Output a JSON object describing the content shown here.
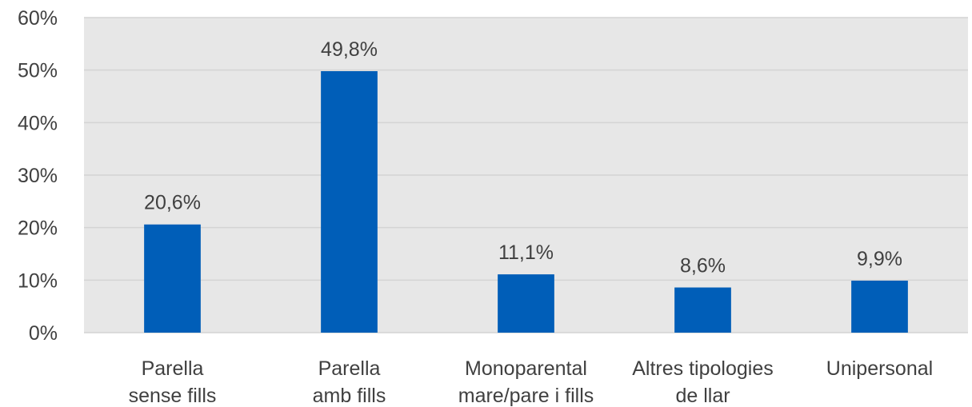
{
  "chart_data": {
    "type": "bar",
    "categories": [
      [
        "Parella",
        "sense fills"
      ],
      [
        "Parella",
        "amb fills"
      ],
      [
        "Monoparental",
        "mare/pare i fills"
      ],
      [
        "Altres tipologies",
        "de llar"
      ],
      [
        "Unipersonal"
      ]
    ],
    "values": [
      20.6,
      49.8,
      11.1,
      8.6,
      9.9
    ],
    "data_labels": [
      "20,6%",
      "49,8%",
      "11,1%",
      "8,6%",
      "9,9%"
    ],
    "y_ticks": [
      "0%",
      "10%",
      "20%",
      "30%",
      "40%",
      "50%",
      "60%"
    ],
    "ylim": [
      0,
      60
    ],
    "grid": true,
    "legend": "none",
    "colors": {
      "bar": "#005EB8",
      "plot_background": "#E7E7E7",
      "gridline": "#D4D4D4",
      "text": "#404040"
    }
  }
}
